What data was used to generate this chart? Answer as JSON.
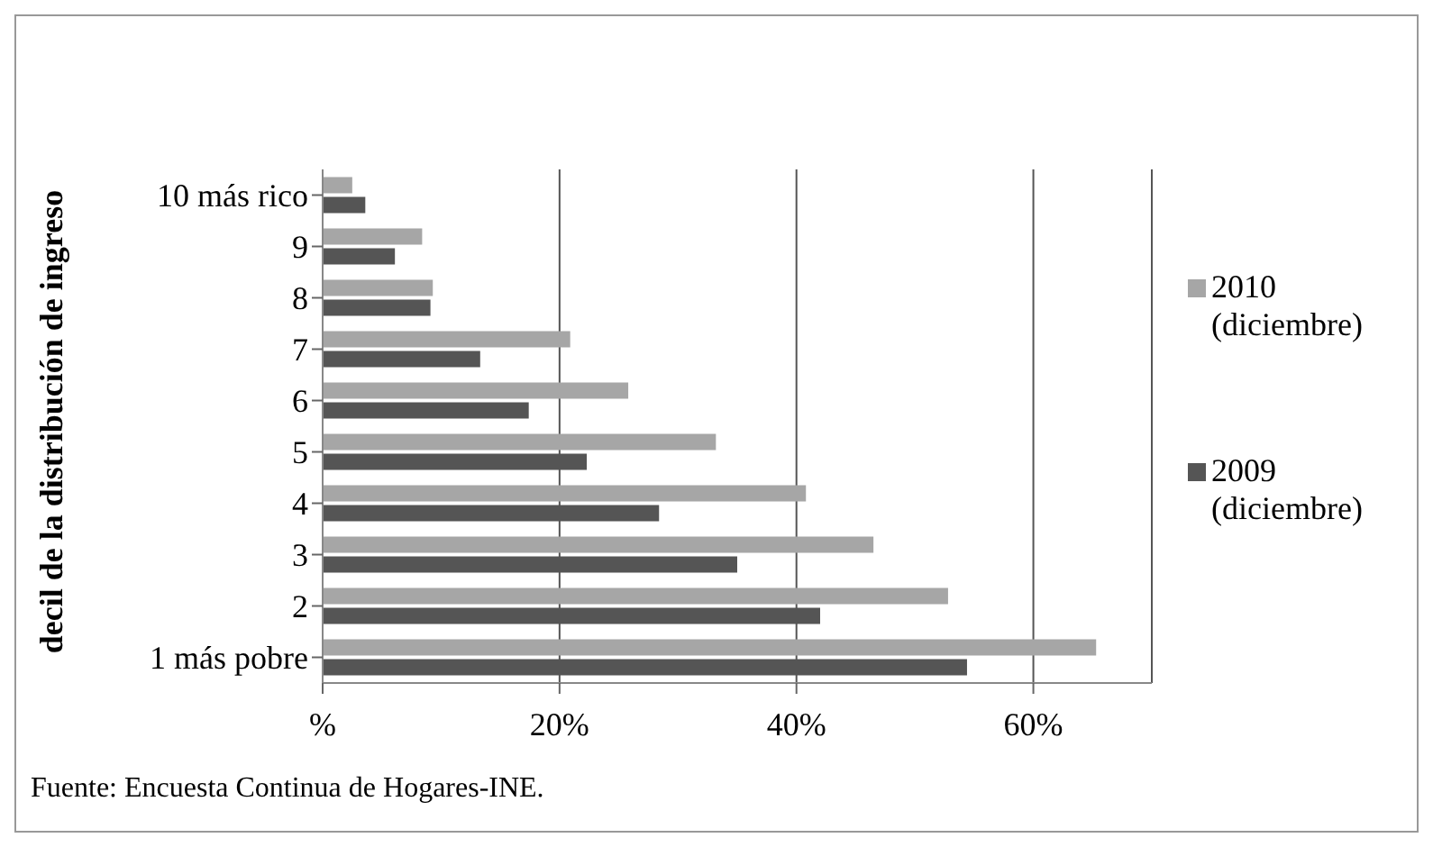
{
  "chart_data": {
    "type": "bar",
    "orientation": "horizontal",
    "ylabel": "decil de la distribución de ingreso",
    "categories": [
      "10 más rico",
      "9",
      "8",
      "7",
      "6",
      "5",
      "4",
      "3",
      "2",
      "1 más pobre"
    ],
    "series": [
      {
        "name": "2010 (diciembre)",
        "color": "#a6a6a6",
        "values": [
          2.5,
          8.4,
          9.3,
          20.9,
          25.8,
          33.2,
          40.8,
          46.5,
          52.8,
          65.3
        ]
      },
      {
        "name": "2009 (diciembre)",
        "color": "#555555",
        "values": [
          3.6,
          6.1,
          9.1,
          13.3,
          17.4,
          22.3,
          28.4,
          35,
          42,
          54.4
        ]
      }
    ],
    "xlim": [
      0,
      70
    ],
    "xticks": [
      {
        "value": 0,
        "label": "%"
      },
      {
        "value": 20,
        "label": "20%"
      },
      {
        "value": 40,
        "label": "40%"
      },
      {
        "value": 60,
        "label": "60%"
      }
    ],
    "grid": "x",
    "legend": "right",
    "annotations": [
      "Fuente: Encuesta Continua de Hogares-INE."
    ]
  }
}
